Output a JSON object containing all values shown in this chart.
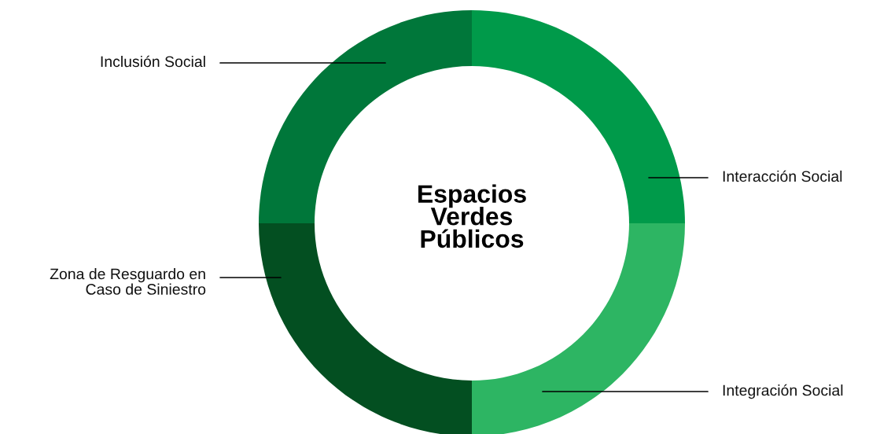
{
  "chart_data": {
    "type": "donut",
    "title": "Espacios\nVerdes\nPúblicos",
    "categories": [
      "Interacción Social",
      "Integración Social",
      "Zona de Resguardo en\nCaso de Siniestro",
      "Inclusión Social"
    ],
    "values": [
      25,
      25,
      25,
      25
    ],
    "colors": [
      "#009a4a",
      "#2db563",
      "#034f21",
      "#00773a"
    ],
    "legend": false
  }
}
